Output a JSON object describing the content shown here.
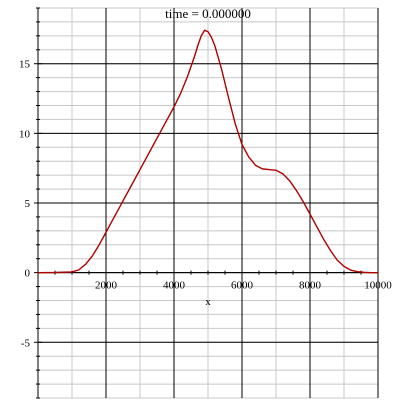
{
  "chart_data": {
    "type": "line",
    "title": "time = 0.000000",
    "xlabel": "x",
    "ylabel": "",
    "xlim": [
      0,
      10000
    ],
    "ylim": [
      -9,
      19
    ],
    "grid": true,
    "legend": "none",
    "x_major_ticks": [
      2000,
      4000,
      6000,
      8000,
      10000
    ],
    "x_tick_labels": [
      "2000",
      "4000",
      "6000",
      "8000",
      "10000"
    ],
    "y_major_ticks": [
      -5,
      0,
      5,
      10,
      15
    ],
    "y_tick_labels": [
      "-5",
      "0",
      "5",
      "10",
      "15"
    ],
    "x_minor_step": 1000,
    "y_minor_step": 1,
    "series": [
      {
        "color": "#b00000",
        "points": [
          [
            0,
            0
          ],
          [
            500,
            0.01
          ],
          [
            1000,
            0.05
          ],
          [
            1200,
            0.2
          ],
          [
            1400,
            0.6
          ],
          [
            1600,
            1.2
          ],
          [
            1800,
            2.0
          ],
          [
            2000,
            2.9
          ],
          [
            2200,
            3.8
          ],
          [
            2400,
            4.7
          ],
          [
            2600,
            5.6
          ],
          [
            2800,
            6.5
          ],
          [
            3000,
            7.4
          ],
          [
            3200,
            8.3
          ],
          [
            3400,
            9.2
          ],
          [
            3600,
            10.1
          ],
          [
            3800,
            11.0
          ],
          [
            4000,
            11.9
          ],
          [
            4200,
            12.9
          ],
          [
            4400,
            14.1
          ],
          [
            4600,
            15.5
          ],
          [
            4700,
            16.3
          ],
          [
            4800,
            17.0
          ],
          [
            4900,
            17.4
          ],
          [
            5000,
            17.3
          ],
          [
            5100,
            16.9
          ],
          [
            5200,
            16.3
          ],
          [
            5400,
            14.6
          ],
          [
            5600,
            12.6
          ],
          [
            5800,
            10.7
          ],
          [
            6000,
            9.2
          ],
          [
            6200,
            8.3
          ],
          [
            6400,
            7.7
          ],
          [
            6600,
            7.45
          ],
          [
            6800,
            7.4
          ],
          [
            7000,
            7.35
          ],
          [
            7200,
            7.1
          ],
          [
            7400,
            6.6
          ],
          [
            7600,
            5.9
          ],
          [
            7800,
            5.1
          ],
          [
            8000,
            4.2
          ],
          [
            8200,
            3.3
          ],
          [
            8400,
            2.4
          ],
          [
            8600,
            1.6
          ],
          [
            8800,
            0.9
          ],
          [
            9000,
            0.45
          ],
          [
            9200,
            0.18
          ],
          [
            9400,
            0.07
          ],
          [
            9600,
            0.02
          ],
          [
            9800,
            0.0
          ],
          [
            10000,
            0.0
          ]
        ]
      }
    ]
  },
  "colors": {
    "background": "#ffffff",
    "minor_grid": "#c8c8c8",
    "major_grid": "#000000",
    "curve": "#b00000"
  }
}
